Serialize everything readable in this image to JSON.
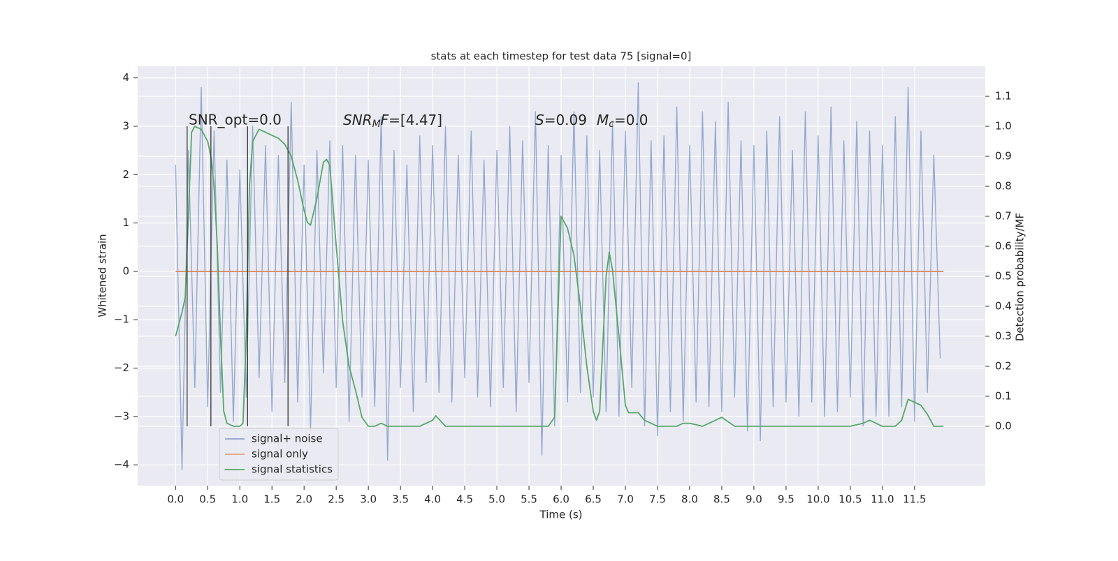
{
  "chart_data": {
    "type": "line",
    "title": "stats at each timestep for test data 75 [signal=0]",
    "xlabel": "Time (s)",
    "ylabel": "Whitened strain",
    "y2label": "Detection probability/MF",
    "xlim": [
      -0.59,
      12.6
    ],
    "ylim": [
      -4.43,
      4.24
    ],
    "y2lim": [
      -0.198,
      1.2
    ],
    "xticks": [
      {
        "value": 0,
        "label": "0.0"
      },
      0.5,
      {
        "value": 1,
        "label": "1.0"
      },
      1.5,
      {
        "value": 2,
        "label": "2.0"
      },
      2.5,
      {
        "value": 3,
        "label": "3.0"
      },
      3.5,
      {
        "value": 4,
        "label": "4.0"
      },
      4.5,
      {
        "value": 5,
        "label": "5.0"
      },
      5.5,
      {
        "value": 6,
        "label": "6.0"
      },
      6.5,
      {
        "value": 7,
        "label": "7.0"
      },
      7.5,
      {
        "value": 8,
        "label": "8.0"
      },
      8.5,
      {
        "value": 9,
        "label": "9.0"
      },
      9.5,
      {
        "value": 10,
        "label": "10.0"
      },
      10.5,
      {
        "value": 11,
        "label": "11.0"
      },
      11.5
    ],
    "yticks": [
      -4,
      -3,
      -2,
      -1,
      0,
      1,
      2,
      3,
      4
    ],
    "y2ticks": [
      {
        "value": 0,
        "label": "0.0"
      },
      0.1,
      0.2,
      0.3,
      0.4,
      0.5,
      0.6,
      0.7,
      0.8,
      0.9,
      {
        "value": 1,
        "label": "1.0"
      },
      1.1
    ],
    "grid": true,
    "legend": "lower left",
    "series": [
      {
        "name": "signal+ noise",
        "color": "#4c72b0",
        "x": [
          0,
          0.1,
          0.2,
          0.3,
          0.4,
          0.5,
          0.6,
          0.7,
          0.8,
          0.9,
          1,
          1.1,
          1.2,
          1.3,
          1.4,
          1.5,
          1.6,
          1.7,
          1.8,
          1.9,
          2,
          2.1,
          2.2,
          2.3,
          2.4,
          2.5,
          2.6,
          2.7,
          2.8,
          2.9,
          3,
          3.1,
          3.2,
          3.3,
          3.4,
          3.5,
          3.6,
          3.7,
          3.8,
          3.9,
          4,
          4.1,
          4.2,
          4.3,
          4.4,
          4.5,
          4.6,
          4.7,
          4.8,
          4.9,
          5,
          5.1,
          5.2,
          5.3,
          5.4,
          5.5,
          5.6,
          5.7,
          5.8,
          5.9,
          6,
          6.1,
          6.2,
          6.3,
          6.4,
          6.5,
          6.6,
          6.7,
          6.8,
          6.9,
          7,
          7.1,
          7.2,
          7.3,
          7.4,
          7.5,
          7.6,
          7.7,
          7.8,
          7.9,
          8,
          8.1,
          8.2,
          8.3,
          8.4,
          8.5,
          8.6,
          8.7,
          8.8,
          8.9,
          9,
          9.1,
          9.2,
          9.3,
          9.4,
          9.5,
          9.6,
          9.7,
          9.8,
          9.9,
          10,
          10.1,
          10.2,
          10.3,
          10.4,
          10.5,
          10.6,
          10.7,
          10.8,
          10.9,
          11,
          11.1,
          11.2,
          11.3,
          11.4,
          11.5,
          11.6,
          11.7,
          11.8,
          11.9
        ],
        "values": [
          2.2,
          -4.1,
          2.5,
          -2.4,
          3.8,
          -2.8,
          2.9,
          -2.5,
          2.3,
          -3.1,
          2.1,
          -2.6,
          3.0,
          -2.2,
          2.6,
          -2.9,
          2.4,
          -2.3,
          3.5,
          -2.7,
          2.2,
          -3.3,
          2.5,
          -2.1,
          2.7,
          -2.4,
          2.6,
          -3.1,
          2.4,
          -2.6,
          2.3,
          -2.8,
          3.2,
          -3.9,
          2.5,
          -2.4,
          2.2,
          -2.9,
          2.8,
          -2.3,
          2.6,
          -2.5,
          3.0,
          -2.7,
          2.4,
          -2.2,
          2.9,
          -2.6,
          2.3,
          -2.8,
          2.5,
          -2.4,
          3.0,
          -2.9,
          2.7,
          -2.3,
          3.3,
          -3.8,
          2.6,
          -3.2,
          2.4,
          -2.7,
          3.3,
          -2.5,
          2.8,
          -2.6,
          2.5,
          -2.9,
          3.1,
          -3.0,
          2.9,
          -2.4,
          3.9,
          -3.2,
          2.7,
          -3.4,
          2.8,
          -2.9,
          3.4,
          -3.1,
          2.6,
          -2.7,
          3.3,
          -2.8,
          3.1,
          -2.9,
          3.5,
          -2.6,
          2.7,
          -3.3,
          2.6,
          -3.5,
          2.9,
          -2.8,
          3.2,
          -2.7,
          2.5,
          -3.0,
          3.3,
          -2.7,
          2.8,
          -3.0,
          3.4,
          -2.9,
          2.7,
          -2.6,
          3.1,
          -3.2,
          2.9,
          -3.0,
          2.6,
          -3.0,
          3.2,
          -2.8,
          3.8,
          -3.1,
          2.9,
          -2.5,
          2.4,
          -1.8
        ]
      },
      {
        "name": "signal only",
        "color": "#dd8452",
        "x": [
          0,
          11.95
        ],
        "values": [
          0,
          0
        ]
      },
      {
        "name": "signal statistics",
        "color": "#55a868",
        "axis": "y2",
        "x": [
          0,
          0.1,
          0.15,
          0.25,
          0.3,
          0.4,
          0.5,
          0.55,
          0.6,
          0.65,
          0.7,
          0.75,
          0.8,
          0.9,
          1,
          1.05,
          1.1,
          1.15,
          1.2,
          1.3,
          1.4,
          1.5,
          1.6,
          1.7,
          1.8,
          1.9,
          2,
          2.05,
          2.1,
          2.2,
          2.3,
          2.35,
          2.4,
          2.5,
          2.6,
          2.7,
          2.8,
          2.9,
          3,
          3.1,
          3.2,
          3.3,
          3.5,
          3.8,
          4,
          4.05,
          4.2,
          4.5,
          5,
          5.5,
          5.8,
          5.9,
          6,
          6.1,
          6.2,
          6.3,
          6.4,
          6.5,
          6.55,
          6.6,
          6.7,
          6.75,
          6.8,
          6.9,
          7,
          7.05,
          7.2,
          7.3,
          7.5,
          7.8,
          7.9,
          8,
          8.2,
          8.4,
          8.5,
          8.7,
          9,
          10,
          10.5,
          10.7,
          10.8,
          10.9,
          11,
          11.2,
          11.3,
          11.4,
          11.5,
          11.6,
          11.7,
          11.8,
          11.9,
          11.95
        ],
        "values": [
          0.3,
          0.38,
          0.43,
          0.98,
          1.0,
          0.99,
          0.95,
          0.9,
          0.8,
          0.6,
          0.3,
          0.05,
          0.01,
          0.0,
          0.0,
          0.01,
          0.3,
          0.8,
          0.95,
          0.99,
          0.98,
          0.97,
          0.96,
          0.94,
          0.9,
          0.82,
          0.72,
          0.68,
          0.67,
          0.76,
          0.88,
          0.89,
          0.87,
          0.6,
          0.35,
          0.2,
          0.12,
          0.03,
          0.0,
          0.0,
          0.01,
          0.0,
          0.0,
          0.0,
          0.02,
          0.035,
          0.0,
          0.0,
          0.0,
          0.0,
          0.0,
          0.03,
          0.7,
          0.66,
          0.57,
          0.4,
          0.2,
          0.05,
          0.02,
          0.05,
          0.5,
          0.58,
          0.52,
          0.3,
          0.07,
          0.045,
          0.045,
          0.02,
          0.0,
          0.0,
          0.01,
          0.01,
          0.0,
          0.02,
          0.03,
          0.0,
          0.0,
          0.0,
          0.0,
          0.01,
          0.02,
          0.01,
          0.0,
          0.0,
          0.02,
          0.09,
          0.08,
          0.07,
          0.04,
          0.0,
          0.0,
          0.0
        ]
      }
    ],
    "vlines": {
      "axis": "y2",
      "color": "#333333",
      "x": [
        0.18,
        0.55,
        1.12,
        1.75
      ],
      "ymin": 0,
      "ymax": 1
    },
    "annotations": [
      {
        "parts": [
          "SNR_opt=0.0"
        ]
      },
      {
        "parts": [
          "SNR",
          "M",
          "F",
          "=[4.47]"
        ]
      },
      {
        "parts": [
          "S",
          "=0.09",
          "M",
          "c",
          "=0.0"
        ]
      }
    ]
  }
}
